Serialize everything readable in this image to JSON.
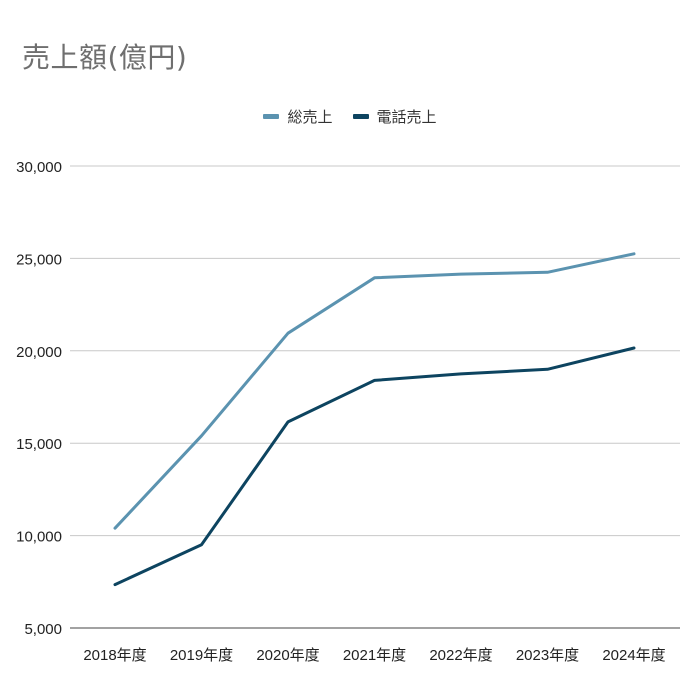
{
  "chart_data": {
    "type": "line",
    "title": "売上額(億円)",
    "xlabel": "",
    "ylabel": "",
    "categories": [
      "2018年度",
      "2019年度",
      "2020年度",
      "2021年度",
      "2022年度",
      "2023年度",
      "2024年度"
    ],
    "series": [
      {
        "name": "総売上",
        "color": "#5b93b0",
        "values": [
          10400,
          15400,
          20950,
          23950,
          24150,
          24250,
          25250
        ]
      },
      {
        "name": "電話売上",
        "color": "#0d4460",
        "values": [
          7350,
          9500,
          16150,
          18400,
          18750,
          19000,
          20150
        ]
      }
    ],
    "ylim": [
      5000,
      30000
    ],
    "yticks": [
      5000,
      10000,
      15000,
      20000,
      25000,
      30000
    ],
    "ytick_labels": [
      "5,000",
      "10,000",
      "15,000",
      "20,000",
      "25,000",
      "30,000"
    ],
    "grid": true,
    "legend_position": "top"
  }
}
